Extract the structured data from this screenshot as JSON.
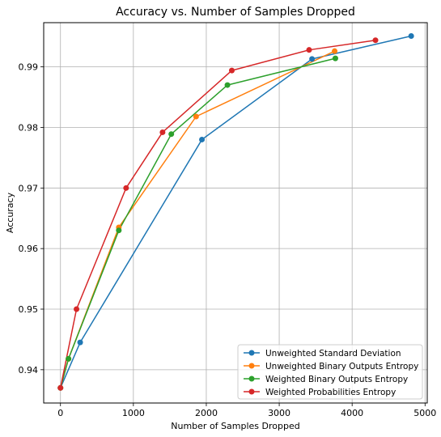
{
  "chart_data": {
    "type": "line",
    "title": "Accuracy vs. Number of Samples Dropped",
    "xlabel": "Number of Samples Dropped",
    "ylabel": "Accuracy",
    "xlim": [
      -230,
      5030
    ],
    "ylim": [
      0.9345,
      0.9973
    ],
    "xticks": [
      0,
      1000,
      2000,
      3000,
      4000,
      5000
    ],
    "xtick_labels": [
      "0",
      "1000",
      "2000",
      "3000",
      "4000",
      "5000"
    ],
    "yticks": [
      0.94,
      0.95,
      0.96,
      0.97,
      0.98,
      0.99
    ],
    "ytick_labels": [
      "0.94",
      "0.95",
      "0.96",
      "0.97",
      "0.98",
      "0.99"
    ],
    "grid": true,
    "legend_position": "lower-right",
    "series": [
      {
        "name": "Unweighted Standard Deviation",
        "color": "#1f77b4",
        "x": [
          0,
          270,
          1940,
          3450,
          4810
        ],
        "y": [
          0.937,
          0.9445,
          0.978,
          0.9913,
          0.9951
        ]
      },
      {
        "name": "Unweighted Binary Outputs Entropy",
        "color": "#ff7f0e",
        "x": [
          0,
          110,
          800,
          1860,
          3760
        ],
        "y": [
          0.937,
          0.9418,
          0.9635,
          0.9818,
          0.9926
        ]
      },
      {
        "name": "Weighted Binary Outputs Entropy",
        "color": "#2ca02c",
        "x": [
          0,
          110,
          800,
          1520,
          2290,
          3770
        ],
        "y": [
          0.937,
          0.9418,
          0.963,
          0.9789,
          0.987,
          0.9914
        ]
      },
      {
        "name": "Weighted Probabilities Entropy",
        "color": "#d62728",
        "x": [
          0,
          220,
          900,
          1400,
          2350,
          3410,
          4320
        ],
        "y": [
          0.937,
          0.95,
          0.97,
          0.9792,
          0.9894,
          0.9928,
          0.9944
        ]
      }
    ]
  }
}
